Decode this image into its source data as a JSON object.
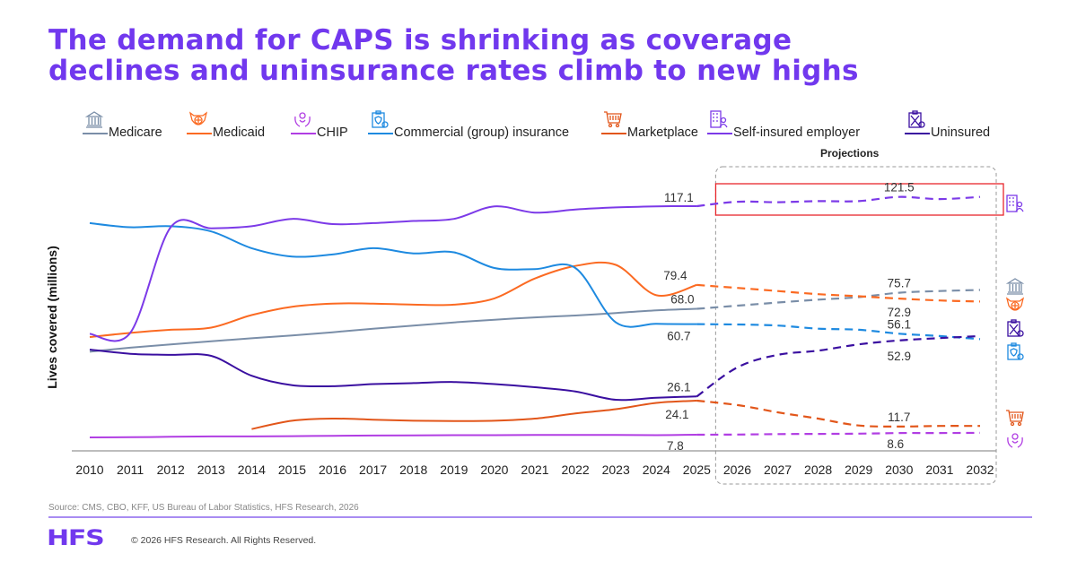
{
  "title": {
    "line1": "The demand for CAPS is shrinking as coverage",
    "line2": "declines and uninsurance rates climb to new highs"
  },
  "chart_data": {
    "type": "line",
    "title": "The demand for CAPS is shrinking as coverage declines and uninsurance rates climb to new highs",
    "xlabel": "",
    "ylabel": "Lives covered (millions)",
    "x": [
      "2010",
      "2011",
      "2012",
      "2013",
      "2014",
      "2015",
      "2016",
      "2017",
      "2018",
      "2019",
      "2020",
      "2021",
      "2022",
      "2023",
      "2024",
      "2025",
      "2026",
      "2027",
      "2028",
      "2029",
      "2030",
      "2031",
      "2032"
    ],
    "projection_start": "2025",
    "projection_label": "Projections",
    "ylim": [
      0,
      130
    ],
    "grid": false,
    "legend_position": "top",
    "series": [
      {
        "key": "medicare",
        "name": "Medicare",
        "color": "#7a8ea8",
        "icon": "government-building-icon",
        "values": [
          47.5,
          49.4,
          51.0,
          52.5,
          53.9,
          55.3,
          56.8,
          58.5,
          60.0,
          61.5,
          62.8,
          63.9,
          64.8,
          66.0,
          67.3,
          68.0,
          69.5,
          71.0,
          72.4,
          73.6,
          75.7,
          76.5,
          77.0
        ]
      },
      {
        "key": "medicaid",
        "name": "Medicaid",
        "color": "#fb6a22",
        "icon": "medical-shield-icon",
        "values": [
          54.5,
          56.5,
          58.0,
          59.0,
          65.0,
          69.0,
          70.5,
          70.5,
          70.0,
          70.0,
          73.0,
          82.5,
          88.5,
          89.0,
          74.5,
          79.4,
          78.0,
          76.5,
          75.0,
          74.0,
          72.9,
          72.0,
          71.5
        ]
      },
      {
        "key": "chip",
        "name": "CHIP",
        "color": "#b13ee3",
        "icon": "child-care-hands-icon",
        "values": [
          6.5,
          6.6,
          6.8,
          7.0,
          7.0,
          7.1,
          7.3,
          7.4,
          7.5,
          7.6,
          7.6,
          7.7,
          7.7,
          7.7,
          7.6,
          7.8,
          7.9,
          8.1,
          8.2,
          8.3,
          8.6,
          8.6,
          8.7
        ]
      },
      {
        "key": "commercial",
        "name": "Commercial (group) insurance",
        "color": "#1e8ae0",
        "icon": "insurance-clipboard-icon",
        "values": [
          109.0,
          107.0,
          107.5,
          105.0,
          97.0,
          93.0,
          94.0,
          97.0,
          94.5,
          95.0,
          87.5,
          87.0,
          87.5,
          61.5,
          60.8,
          60.7,
          60.5,
          60.0,
          58.5,
          58.0,
          56.1,
          55.0,
          53.5
        ]
      },
      {
        "key": "marketplace",
        "name": "Marketplace",
        "color": "#e2561a",
        "icon": "shopping-cart-icon",
        "values": [
          null,
          null,
          null,
          null,
          10.5,
          14.5,
          15.5,
          15.0,
          14.5,
          14.3,
          14.5,
          15.5,
          18.0,
          20.0,
          23.0,
          24.1,
          22.0,
          18.5,
          15.5,
          12.2,
          11.7,
          12.0,
          12.0
        ]
      },
      {
        "key": "self_insured",
        "name": "Self-insured employer",
        "color": "#7c3ae8",
        "icon": "office-building-person-icon",
        "values": [
          56.0,
          56.5,
          107.0,
          106.5,
          107.5,
          111.0,
          108.5,
          109.0,
          110.0,
          111.0,
          117.0,
          114.0,
          115.5,
          116.5,
          117.0,
          117.1,
          119.2,
          119.0,
          119.5,
          119.5,
          121.5,
          120.5,
          121.5
        ]
      },
      {
        "key": "uninsured",
        "name": "Uninsured",
        "color": "#3a0fa0",
        "icon": "crossed-clipboard-icon",
        "values": [
          48.5,
          46.5,
          46.0,
          45.5,
          36.0,
          31.5,
          31.0,
          32.0,
          32.5,
          33.0,
          32.0,
          30.5,
          28.5,
          24.5,
          25.5,
          26.1,
          40.0,
          46.0,
          48.0,
          51.0,
          52.9,
          54.0,
          55.0
        ]
      }
    ],
    "annotations": [
      {
        "series": "self_insured",
        "year": "2025",
        "label": "117.1"
      },
      {
        "series": "self_insured",
        "year": "2030",
        "label": "121.5"
      },
      {
        "series": "medicaid",
        "year": "2025",
        "label": "79.4"
      },
      {
        "series": "medicaid",
        "year": "2030",
        "label": "72.9"
      },
      {
        "series": "medicare",
        "year": "2025",
        "label": "68.0"
      },
      {
        "series": "medicare",
        "year": "2030",
        "label": "75.7"
      },
      {
        "series": "commercial",
        "year": "2025",
        "label": "60.7"
      },
      {
        "series": "commercial",
        "year": "2030",
        "label": "56.1"
      },
      {
        "series": "uninsured",
        "year": "2025",
        "label": "26.1"
      },
      {
        "series": "uninsured",
        "year": "2030",
        "label": "52.9"
      },
      {
        "series": "marketplace",
        "year": "2025",
        "label": "24.1"
      },
      {
        "series": "marketplace",
        "year": "2030",
        "label": "11.7"
      },
      {
        "series": "chip",
        "year": "2025",
        "label": "7.8"
      },
      {
        "series": "chip",
        "year": "2030",
        "label": "8.6"
      }
    ],
    "highlight": {
      "series": "self_insured",
      "from": "2026",
      "to": "2032",
      "color": "#e8262c"
    }
  },
  "legend": [
    {
      "label": "Medicare",
      "color": "#7a8ea8",
      "icon": "government-building-icon"
    },
    {
      "label": "Medicaid",
      "color": "#fb6a22",
      "icon": "medical-shield-icon"
    },
    {
      "label": "CHIP",
      "color": "#b13ee3",
      "icon": "child-care-hands-icon"
    },
    {
      "label": "Commercial (group) insurance",
      "color": "#1e8ae0",
      "icon": "insurance-clipboard-icon"
    },
    {
      "label": "Marketplace",
      "color": "#e2561a",
      "icon": "shopping-cart-icon"
    },
    {
      "label": "Self-insured employer",
      "color": "#7c3ae8",
      "icon": "office-building-person-icon"
    },
    {
      "label": "Uninsured",
      "color": "#3a0fa0",
      "icon": "crossed-clipboard-icon"
    }
  ],
  "footer": {
    "source": "Source: CMS, CBO, KFF, US Bureau of Labor Statistics, HFS Research, 2026",
    "logo": "HFS",
    "copyright": "© 2026 HFS Research. All Rights Reserved."
  }
}
